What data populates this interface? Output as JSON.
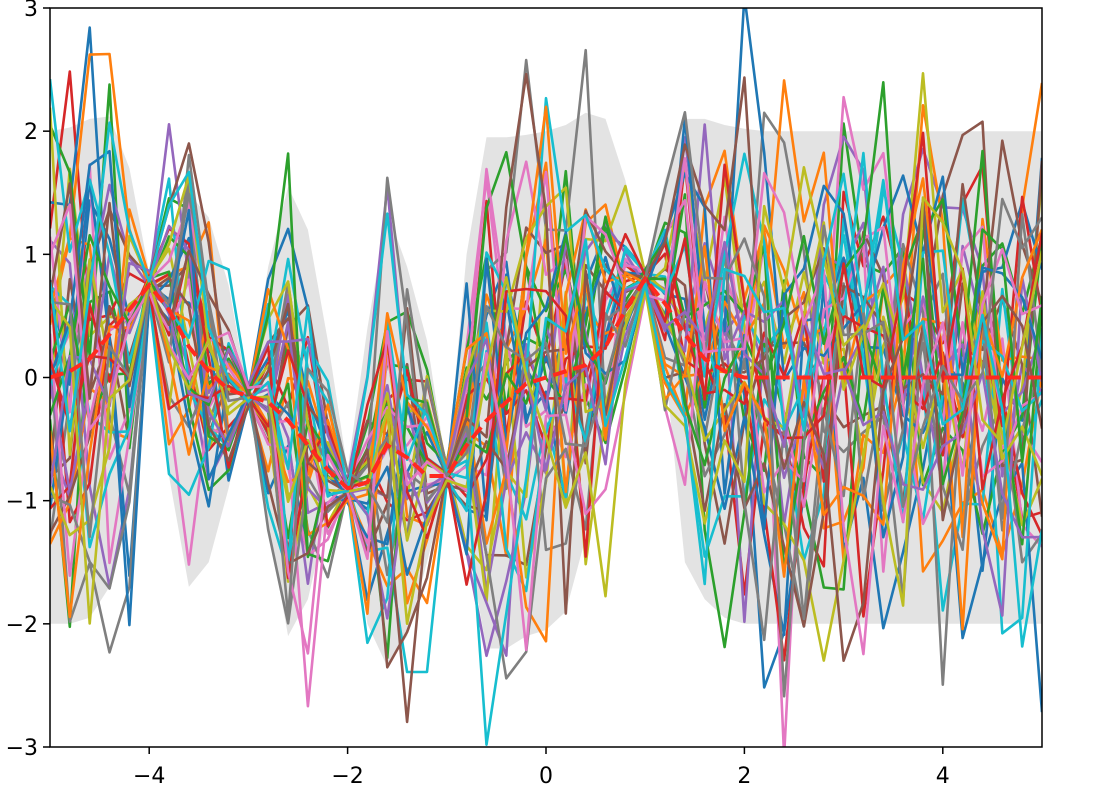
{
  "chart_data": {
    "type": "line",
    "title": "",
    "xlabel": "",
    "ylabel": "",
    "xlim": [
      -5,
      5
    ],
    "ylim": [
      -3,
      3
    ],
    "grid": false,
    "legend": "none",
    "xticks": [
      -4,
      -2,
      0,
      2,
      4
    ],
    "xtick_labels": [
      "−4",
      "−2",
      "0",
      "2",
      "4"
    ],
    "yticks": [
      -3,
      -2,
      -1,
      0,
      1,
      2,
      3
    ],
    "ytick_labels": [
      "−3",
      "−2",
      "−1",
      "0",
      "1",
      "2",
      "3"
    ],
    "band": {
      "color": "#d9d9d9",
      "x": [
        -5,
        -4.8,
        -4.6,
        -4.4,
        -4.2,
        -4.0,
        -3.8,
        -3.6,
        -3.4,
        -3.2,
        -3.0,
        -2.8,
        -2.6,
        -2.4,
        -2.2,
        -2.0,
        -1.8,
        -1.6,
        -1.4,
        -1.2,
        -1.0,
        -0.8,
        -0.6,
        -0.4,
        -0.2,
        0.0,
        0.2,
        0.4,
        0.6,
        0.8,
        1.0,
        1.2,
        1.4,
        1.6,
        1.8,
        2.0,
        2.2,
        2.6,
        3.0,
        3.5,
        4.0,
        4.5,
        5.0
      ],
      "upper": [
        2.0,
        2.03,
        2.1,
        2.12,
        1.7,
        0.85,
        1.2,
        1.5,
        1.3,
        0.75,
        -0.15,
        0.9,
        1.55,
        1.2,
        0.3,
        -0.75,
        0.4,
        1.35,
        0.9,
        0.3,
        -0.75,
        1.0,
        1.95,
        1.95,
        1.97,
        2.0,
        2.05,
        2.15,
        2.1,
        1.6,
        0.85,
        1.6,
        2.1,
        2.1,
        2.05,
        2.02,
        2.0,
        2.0,
        2.0,
        2.0,
        2.0,
        2.0,
        2.0
      ],
      "lower": [
        -2.0,
        -2.0,
        -1.95,
        -1.7,
        -1.0,
        0.65,
        -0.8,
        -1.7,
        -1.5,
        -0.9,
        -0.2,
        -1.2,
        -2.1,
        -1.8,
        -1.1,
        -0.95,
        -2.0,
        -2.35,
        -2.1,
        -1.5,
        -0.85,
        -1.3,
        -2.2,
        -2.2,
        -2.1,
        -2.05,
        -1.9,
        -1.3,
        -0.4,
        0.3,
        0.8,
        0.1,
        -1.5,
        -1.8,
        -1.95,
        -2.0,
        -2.0,
        -2.0,
        -2.0,
        -2.0,
        -2.0,
        -2.0,
        -2.0
      ]
    },
    "mean_line": {
      "color": "#ff2a1f",
      "style": "dashed",
      "x": [
        -5,
        -4.8,
        -4.6,
        -4.4,
        -4.2,
        -4.0,
        -3.8,
        -3.6,
        -3.4,
        -3.2,
        -3.0,
        -2.8,
        -2.6,
        -2.4,
        -2.2,
        -2.0,
        -1.8,
        -1.6,
        -1.4,
        -1.2,
        -1.0,
        -0.8,
        -0.6,
        -0.4,
        -0.2,
        0.0,
        0.2,
        0.4,
        0.6,
        0.8,
        1.0,
        1.2,
        1.4,
        1.6,
        1.8,
        2.0,
        2.2,
        2.6,
        3.0,
        3.5,
        4.0,
        4.5,
        5.0
      ],
      "y": [
        0.0,
        0.05,
        0.15,
        0.35,
        0.55,
        0.75,
        0.55,
        0.25,
        0.05,
        -0.1,
        -0.15,
        -0.2,
        -0.35,
        -0.55,
        -0.75,
        -0.9,
        -0.85,
        -0.55,
        -0.65,
        -0.8,
        -0.8,
        -0.55,
        -0.35,
        -0.2,
        -0.05,
        0.0,
        0.05,
        0.1,
        0.25,
        0.55,
        0.8,
        0.6,
        0.35,
        0.15,
        0.05,
        0.0,
        0.0,
        0.0,
        0.0,
        0.0,
        0.0,
        0.0,
        0.0
      ]
    },
    "samples": {
      "count": 40,
      "colors": [
        "#1f77b4",
        "#ff7f0e",
        "#2ca02c",
        "#d62728",
        "#9467bd",
        "#8c564b",
        "#e377c2",
        "#7f7f7f",
        "#bcbd22",
        "#17becf"
      ]
    }
  }
}
